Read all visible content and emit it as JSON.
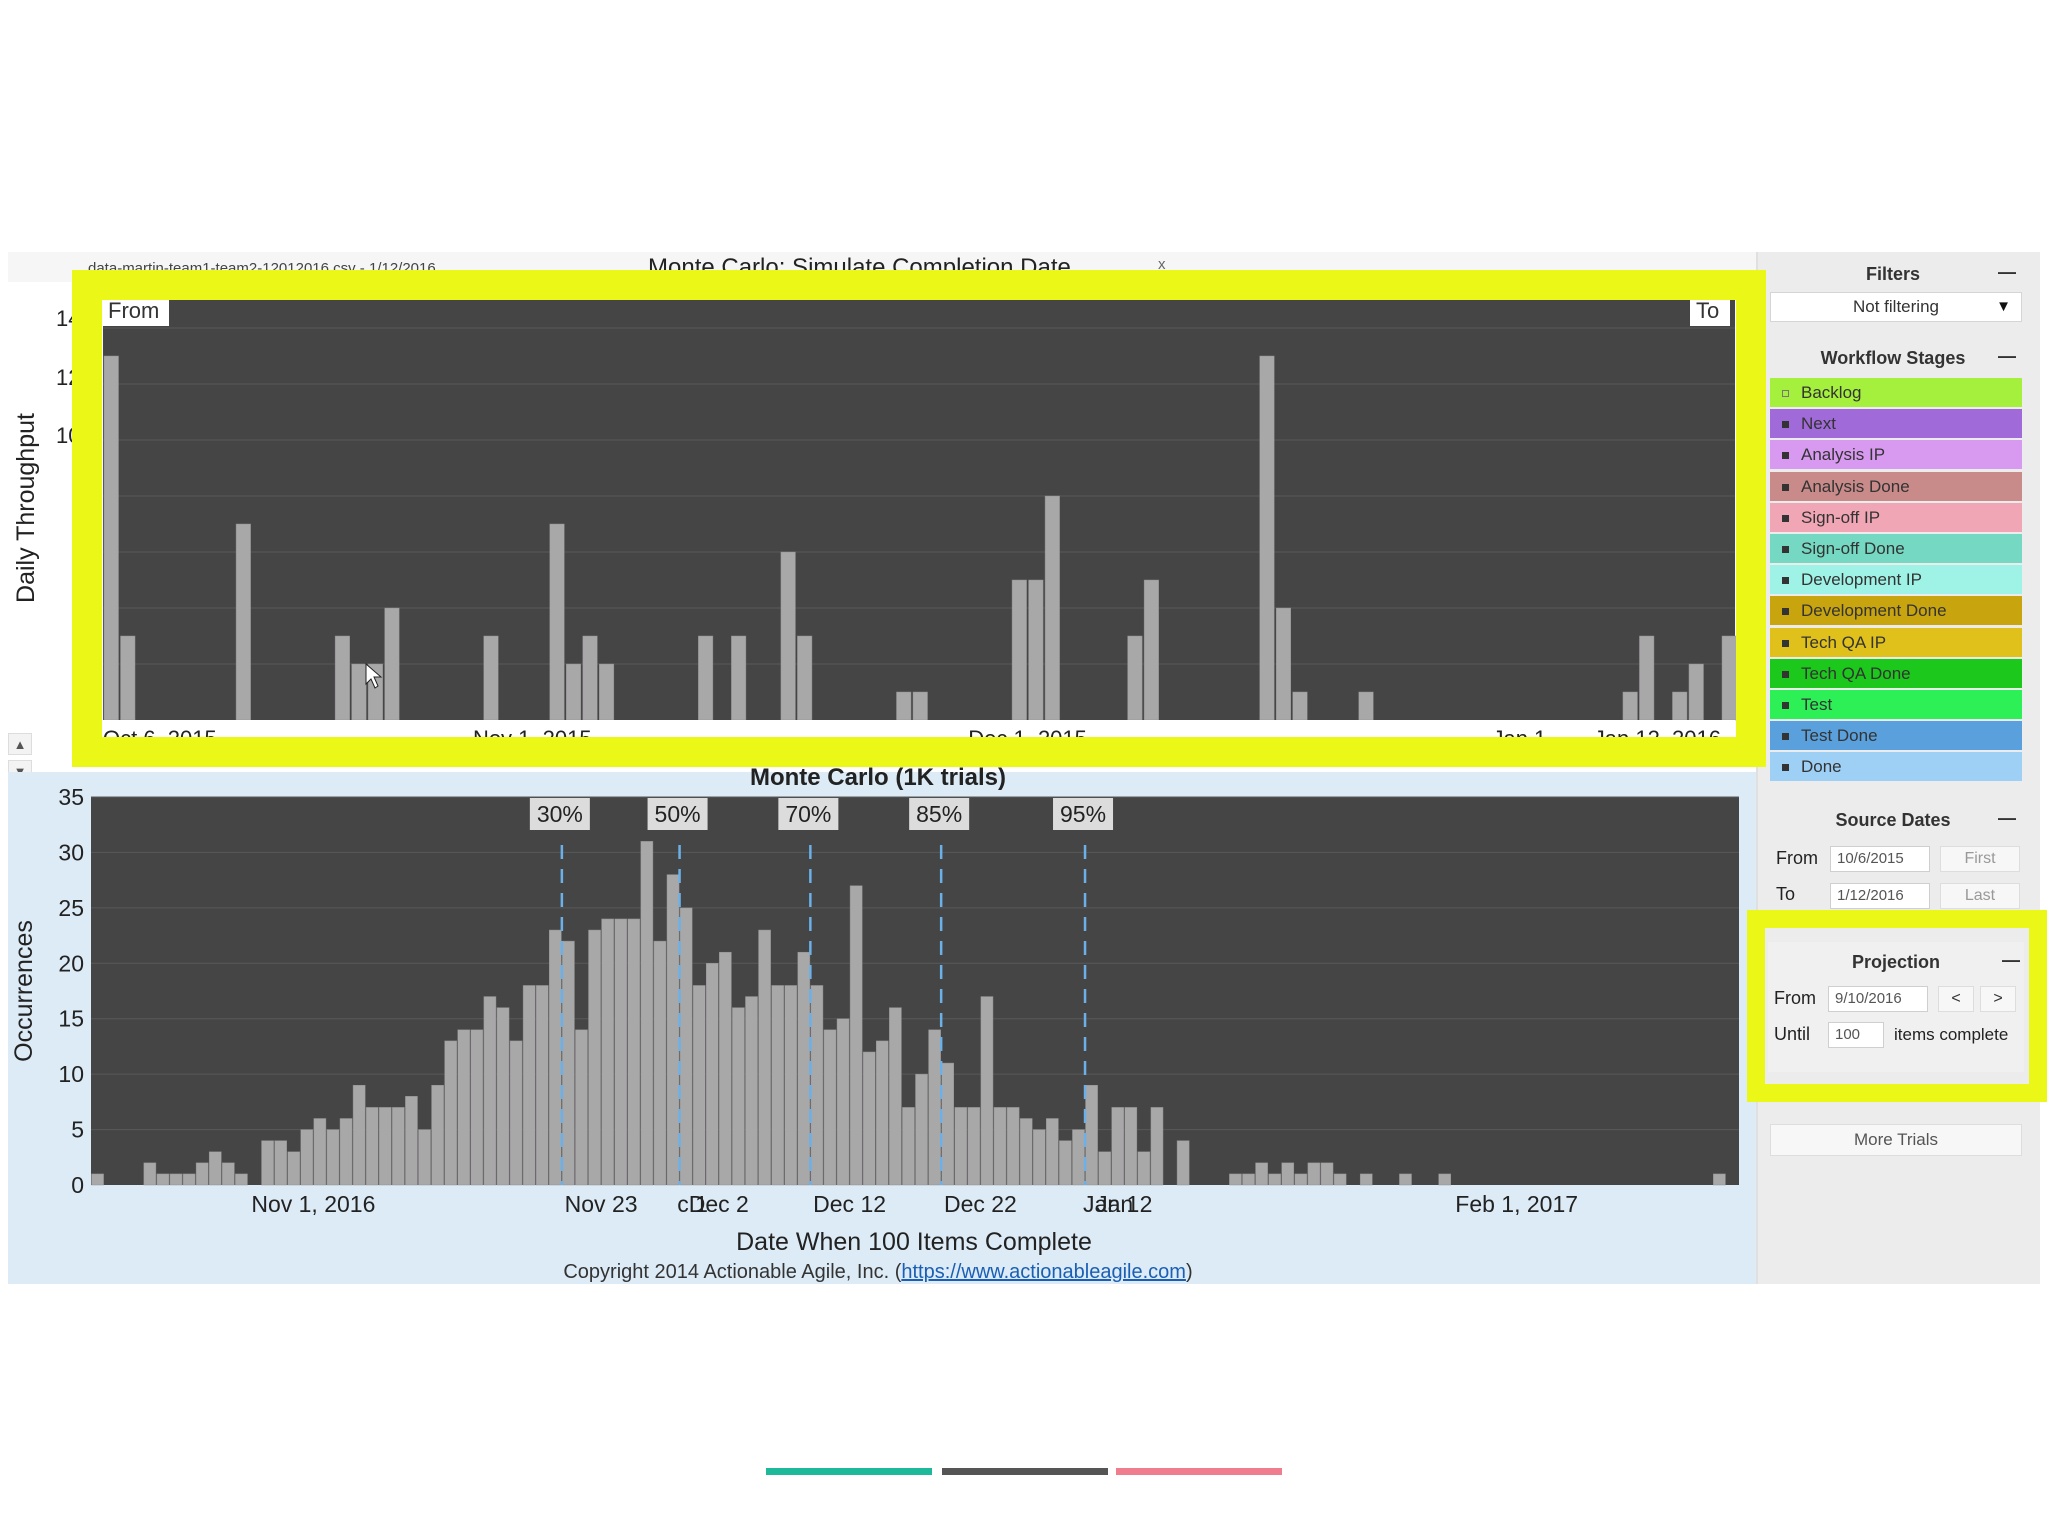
{
  "header": {
    "filename": "data-martin-team1-team2-12012016.csv - 1/12/2016",
    "title": "Monte Carlo: Simulate Completion Date",
    "close": "x"
  },
  "scroll": {
    "up": "▲",
    "down": "▼"
  },
  "throughput_chart": {
    "ylabel": "Daily Throughput",
    "ytick_partials": [
      "14",
      "12",
      "10"
    ],
    "from_label": "From",
    "to_label": "To",
    "x_tick_labels": [
      "Oct 6, 2015",
      "Nov 1, 2015",
      "Dec 1, 2015",
      "Jan 1",
      "Jan 12, 2016"
    ]
  },
  "chart_data": [
    {
      "type": "bar",
      "title": "",
      "xlabel": "",
      "ylabel": "Daily Throughput",
      "x_range": [
        "2015-10-06",
        "2016-01-12"
      ],
      "ylim": [
        0,
        14
      ],
      "bars": [
        {
          "x": "2015-10-06",
          "y": 13
        },
        {
          "x": "2015-10-07",
          "y": 3
        },
        {
          "x": "2015-10-14",
          "y": 7
        },
        {
          "x": "2015-10-20",
          "y": 3
        },
        {
          "x": "2015-10-21",
          "y": 2
        },
        {
          "x": "2015-10-22",
          "y": 2
        },
        {
          "x": "2015-10-23",
          "y": 4
        },
        {
          "x": "2015-10-29",
          "y": 3
        },
        {
          "x": "2015-11-02",
          "y": 7
        },
        {
          "x": "2015-11-03",
          "y": 2
        },
        {
          "x": "2015-11-04",
          "y": 3
        },
        {
          "x": "2015-11-05",
          "y": 2
        },
        {
          "x": "2015-11-11",
          "y": 3
        },
        {
          "x": "2015-11-13",
          "y": 3
        },
        {
          "x": "2015-11-16",
          "y": 6
        },
        {
          "x": "2015-11-17",
          "y": 3
        },
        {
          "x": "2015-11-23",
          "y": 1
        },
        {
          "x": "2015-11-24",
          "y": 1
        },
        {
          "x": "2015-11-30",
          "y": 5
        },
        {
          "x": "2015-12-01",
          "y": 5
        },
        {
          "x": "2015-12-02",
          "y": 8
        },
        {
          "x": "2015-12-07",
          "y": 3
        },
        {
          "x": "2015-12-08",
          "y": 5
        },
        {
          "x": "2015-12-15",
          "y": 13
        },
        {
          "x": "2015-12-16",
          "y": 4
        },
        {
          "x": "2015-12-17",
          "y": 1
        },
        {
          "x": "2015-12-21",
          "y": 1
        },
        {
          "x": "2016-01-06",
          "y": 1
        },
        {
          "x": "2016-01-07",
          "y": 3
        },
        {
          "x": "2016-01-09",
          "y": 1
        },
        {
          "x": "2016-01-10",
          "y": 2
        },
        {
          "x": "2016-01-12",
          "y": 3
        }
      ]
    },
    {
      "type": "bar",
      "title": "Monte Carlo (1K trials)",
      "xlabel": "Date When 100 Items Complete",
      "ylabel": "Occurrences",
      "ylim": [
        0,
        35
      ],
      "yticks": [
        0,
        5,
        10,
        15,
        20,
        25,
        30,
        35
      ],
      "x_range": [
        "2016-10-15",
        "2017-02-18"
      ],
      "x_tick_labels": [
        {
          "date": "2016-11-01",
          "label": "Nov 1, 2016"
        },
        {
          "date": "2016-11-23",
          "label": "Nov 23"
        },
        {
          "date": "2016-11-30",
          "label": "c 1"
        },
        {
          "date": "2016-12-02",
          "label": "Dec 2"
        },
        {
          "date": "2016-12-12",
          "label": "Dec 12"
        },
        {
          "date": "2016-12-22",
          "label": "Dec 22"
        },
        {
          "date": "2017-01-01",
          "label": "Jan 1"
        },
        {
          "date": "2017-01-02",
          "label": "Jan 2"
        },
        {
          "date": "2017-02-01",
          "label": "Feb 1, 2017"
        }
      ],
      "percentiles": [
        {
          "label": "30%",
          "date": "2016-11-20"
        },
        {
          "label": "50%",
          "date": "2016-11-29"
        },
        {
          "label": "70%",
          "date": "2016-12-09"
        },
        {
          "label": "85%",
          "date": "2016-12-19"
        },
        {
          "label": "95%",
          "date": "2016-12-30"
        }
      ],
      "start_date": "2016-10-15",
      "values": [
        1,
        0,
        0,
        0,
        2,
        1,
        1,
        1,
        2,
        3,
        2,
        1,
        0,
        4,
        4,
        3,
        5,
        6,
        5,
        6,
        9,
        7,
        7,
        7,
        8,
        5,
        9,
        13,
        14,
        14,
        17,
        16,
        13,
        18,
        18,
        23,
        22,
        14,
        23,
        24,
        24,
        24,
        31,
        22,
        28,
        25,
        18,
        20,
        21,
        16,
        17,
        23,
        18,
        18,
        21,
        18,
        14,
        15,
        27,
        12,
        13,
        16,
        7,
        10,
        14,
        11,
        7,
        7,
        17,
        7,
        7,
        6,
        5,
        6,
        4,
        5,
        9,
        3,
        7,
        7,
        3,
        7,
        0,
        4,
        0,
        0,
        0,
        1,
        1,
        2,
        1,
        2,
        1,
        2,
        2,
        1,
        0,
        1,
        0,
        0,
        1,
        0,
        0,
        1,
        0,
        0,
        0,
        0,
        0,
        0,
        0,
        0,
        0,
        0,
        0,
        0,
        0,
        0,
        0,
        0,
        0,
        0,
        0,
        0,
        1
      ]
    }
  ],
  "bottom_chart": {
    "title": "Monte Carlo (1K trials)",
    "ylabel": "Occurrences",
    "xlabel": "Date When 100 Items Complete"
  },
  "copyright": {
    "prefix": "Copyright 2014 Actionable Agile, Inc. (",
    "link": "https://www.actionableagile.com",
    "suffix": ")"
  },
  "sidebar": {
    "filters": {
      "title": "Filters",
      "collapse": "—",
      "value": "Not filtering",
      "caret": "▼"
    },
    "workflow": {
      "title": "Workflow Stages",
      "collapse": "—",
      "stages": [
        {
          "label": "Backlog",
          "color": "#a5f03c",
          "checked": false
        },
        {
          "label": "Next",
          "color": "#a06ad8",
          "checked": true
        },
        {
          "label": "Analysis IP",
          "color": "#d89af0",
          "checked": true
        },
        {
          "label": "Analysis Done",
          "color": "#c98a8a",
          "checked": true
        },
        {
          "label": "Sign-off IP",
          "color": "#f0a6b4",
          "checked": true
        },
        {
          "label": "Sign-off Done",
          "color": "#74d8c2",
          "checked": true
        },
        {
          "label": "Development IP",
          "color": "#9ff2e6",
          "checked": true
        },
        {
          "label": "Development Done",
          "color": "#c8a40e",
          "checked": true
        },
        {
          "label": "Tech QA IP",
          "color": "#e0c01a",
          "checked": true
        },
        {
          "label": "Tech QA Done",
          "color": "#1bc81b",
          "checked": true
        },
        {
          "label": "Test",
          "color": "#2cf056",
          "checked": true
        },
        {
          "label": "Test Done",
          "color": "#5aa0dc",
          "checked": true
        },
        {
          "label": "Done",
          "color": "#9ed0f6",
          "checked": true
        }
      ]
    },
    "source_dates": {
      "title": "Source Dates",
      "collapse": "—",
      "from_label": "From",
      "from_value": "10/6/2015",
      "first_button": "First",
      "to_label": "To",
      "to_value": "1/12/2016",
      "last_button": "Last"
    },
    "projection": {
      "title": "Projection",
      "collapse": "—",
      "from_label": "From",
      "from_value": "9/10/2016",
      "prev_button": "<",
      "next_button": ">",
      "until_label": "Until",
      "until_value": "100",
      "items_label": "items complete"
    },
    "more_trials": "More Trials"
  },
  "colors": {
    "chart_bg": "#454545",
    "bar_fill": "#a9a8a9",
    "highlight": "#ebf716",
    "percentile_line": "#6cb0e8",
    "nav": [
      "#1db99a",
      "#555555",
      "#ef7d8e"
    ]
  }
}
